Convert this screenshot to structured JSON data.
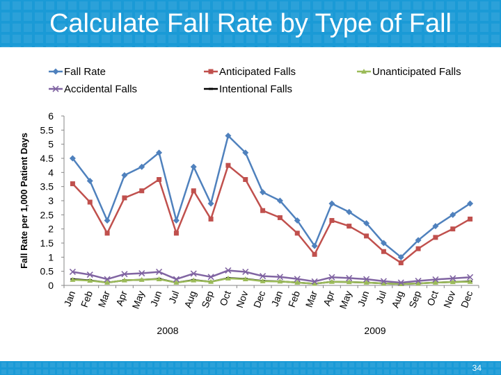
{
  "slide": {
    "title": "Calculate Fall Rate by Type of Fall",
    "page_number": "34"
  },
  "colors": {
    "header": "#1a9ad6",
    "fall_rate": "#4f81bd",
    "anticipated": "#c0504d",
    "unanticipated": "#9bbb59",
    "accidental": "#8064a2",
    "intentional": "#000000"
  },
  "chart_data": {
    "type": "line",
    "title": "",
    "xlabel": "",
    "ylabel": "Fall Rate per 1,000 Patient Days",
    "ylim": [
      0,
      6
    ],
    "yticks": [
      "0",
      "0.5",
      "1",
      "1.5",
      "2",
      "2.5",
      "3",
      "3.5",
      "4",
      "4.5",
      "5",
      "5.5",
      "6"
    ],
    "grid": false,
    "legend": "top",
    "categories": [
      "Jan",
      "Feb",
      "Mar",
      "Apr",
      "May",
      "Jun",
      "Jul",
      "Aug",
      "Sep",
      "Oct",
      "Nov",
      "Dec",
      "Jan",
      "Feb",
      "Mar",
      "Apr",
      "May",
      "Jun",
      "Jul",
      "Aug",
      "Sep",
      "Oct",
      "Nov",
      "Dec"
    ],
    "year_labels": [
      "2008",
      "2009"
    ],
    "series": [
      {
        "name": "Fall Rate",
        "marker": "diamond",
        "values": [
          4.5,
          3.7,
          2.3,
          3.9,
          4.2,
          4.7,
          2.3,
          4.2,
          2.9,
          5.3,
          4.7,
          3.3,
          3.0,
          2.3,
          1.4,
          2.9,
          2.6,
          2.2,
          1.5,
          1.0,
          1.6,
          2.1,
          2.5,
          2.9
        ]
      },
      {
        "name": "Anticipated Falls",
        "marker": "square",
        "values": [
          3.6,
          2.95,
          1.85,
          3.1,
          3.35,
          3.75,
          1.85,
          3.35,
          2.35,
          4.25,
          3.75,
          2.65,
          2.4,
          1.85,
          1.1,
          2.3,
          2.1,
          1.75,
          1.2,
          0.8,
          1.3,
          1.7,
          2.0,
          2.35
        ]
      },
      {
        "name": "Unanticipated Falls",
        "marker": "triangle",
        "values": [
          0.2,
          0.17,
          0.1,
          0.18,
          0.2,
          0.22,
          0.1,
          0.18,
          0.13,
          0.25,
          0.22,
          0.15,
          0.14,
          0.1,
          0.06,
          0.13,
          0.12,
          0.1,
          0.07,
          0.05,
          0.07,
          0.1,
          0.12,
          0.13
        ]
      },
      {
        "name": "Accidental Falls",
        "marker": "x",
        "values": [
          0.48,
          0.38,
          0.22,
          0.4,
          0.43,
          0.48,
          0.22,
          0.42,
          0.3,
          0.53,
          0.48,
          0.33,
          0.3,
          0.23,
          0.14,
          0.29,
          0.26,
          0.22,
          0.15,
          0.1,
          0.16,
          0.21,
          0.25,
          0.29
        ]
      },
      {
        "name": "Intentional Falls",
        "marker": "dash",
        "values": [
          0.22,
          0.18,
          0.1,
          0.18,
          0.2,
          0.23,
          0.1,
          0.19,
          0.13,
          0.26,
          0.23,
          0.16,
          0.14,
          0.1,
          0.06,
          0.13,
          0.12,
          0.1,
          0.07,
          0.05,
          0.07,
          0.1,
          0.12,
          0.14
        ]
      }
    ]
  }
}
